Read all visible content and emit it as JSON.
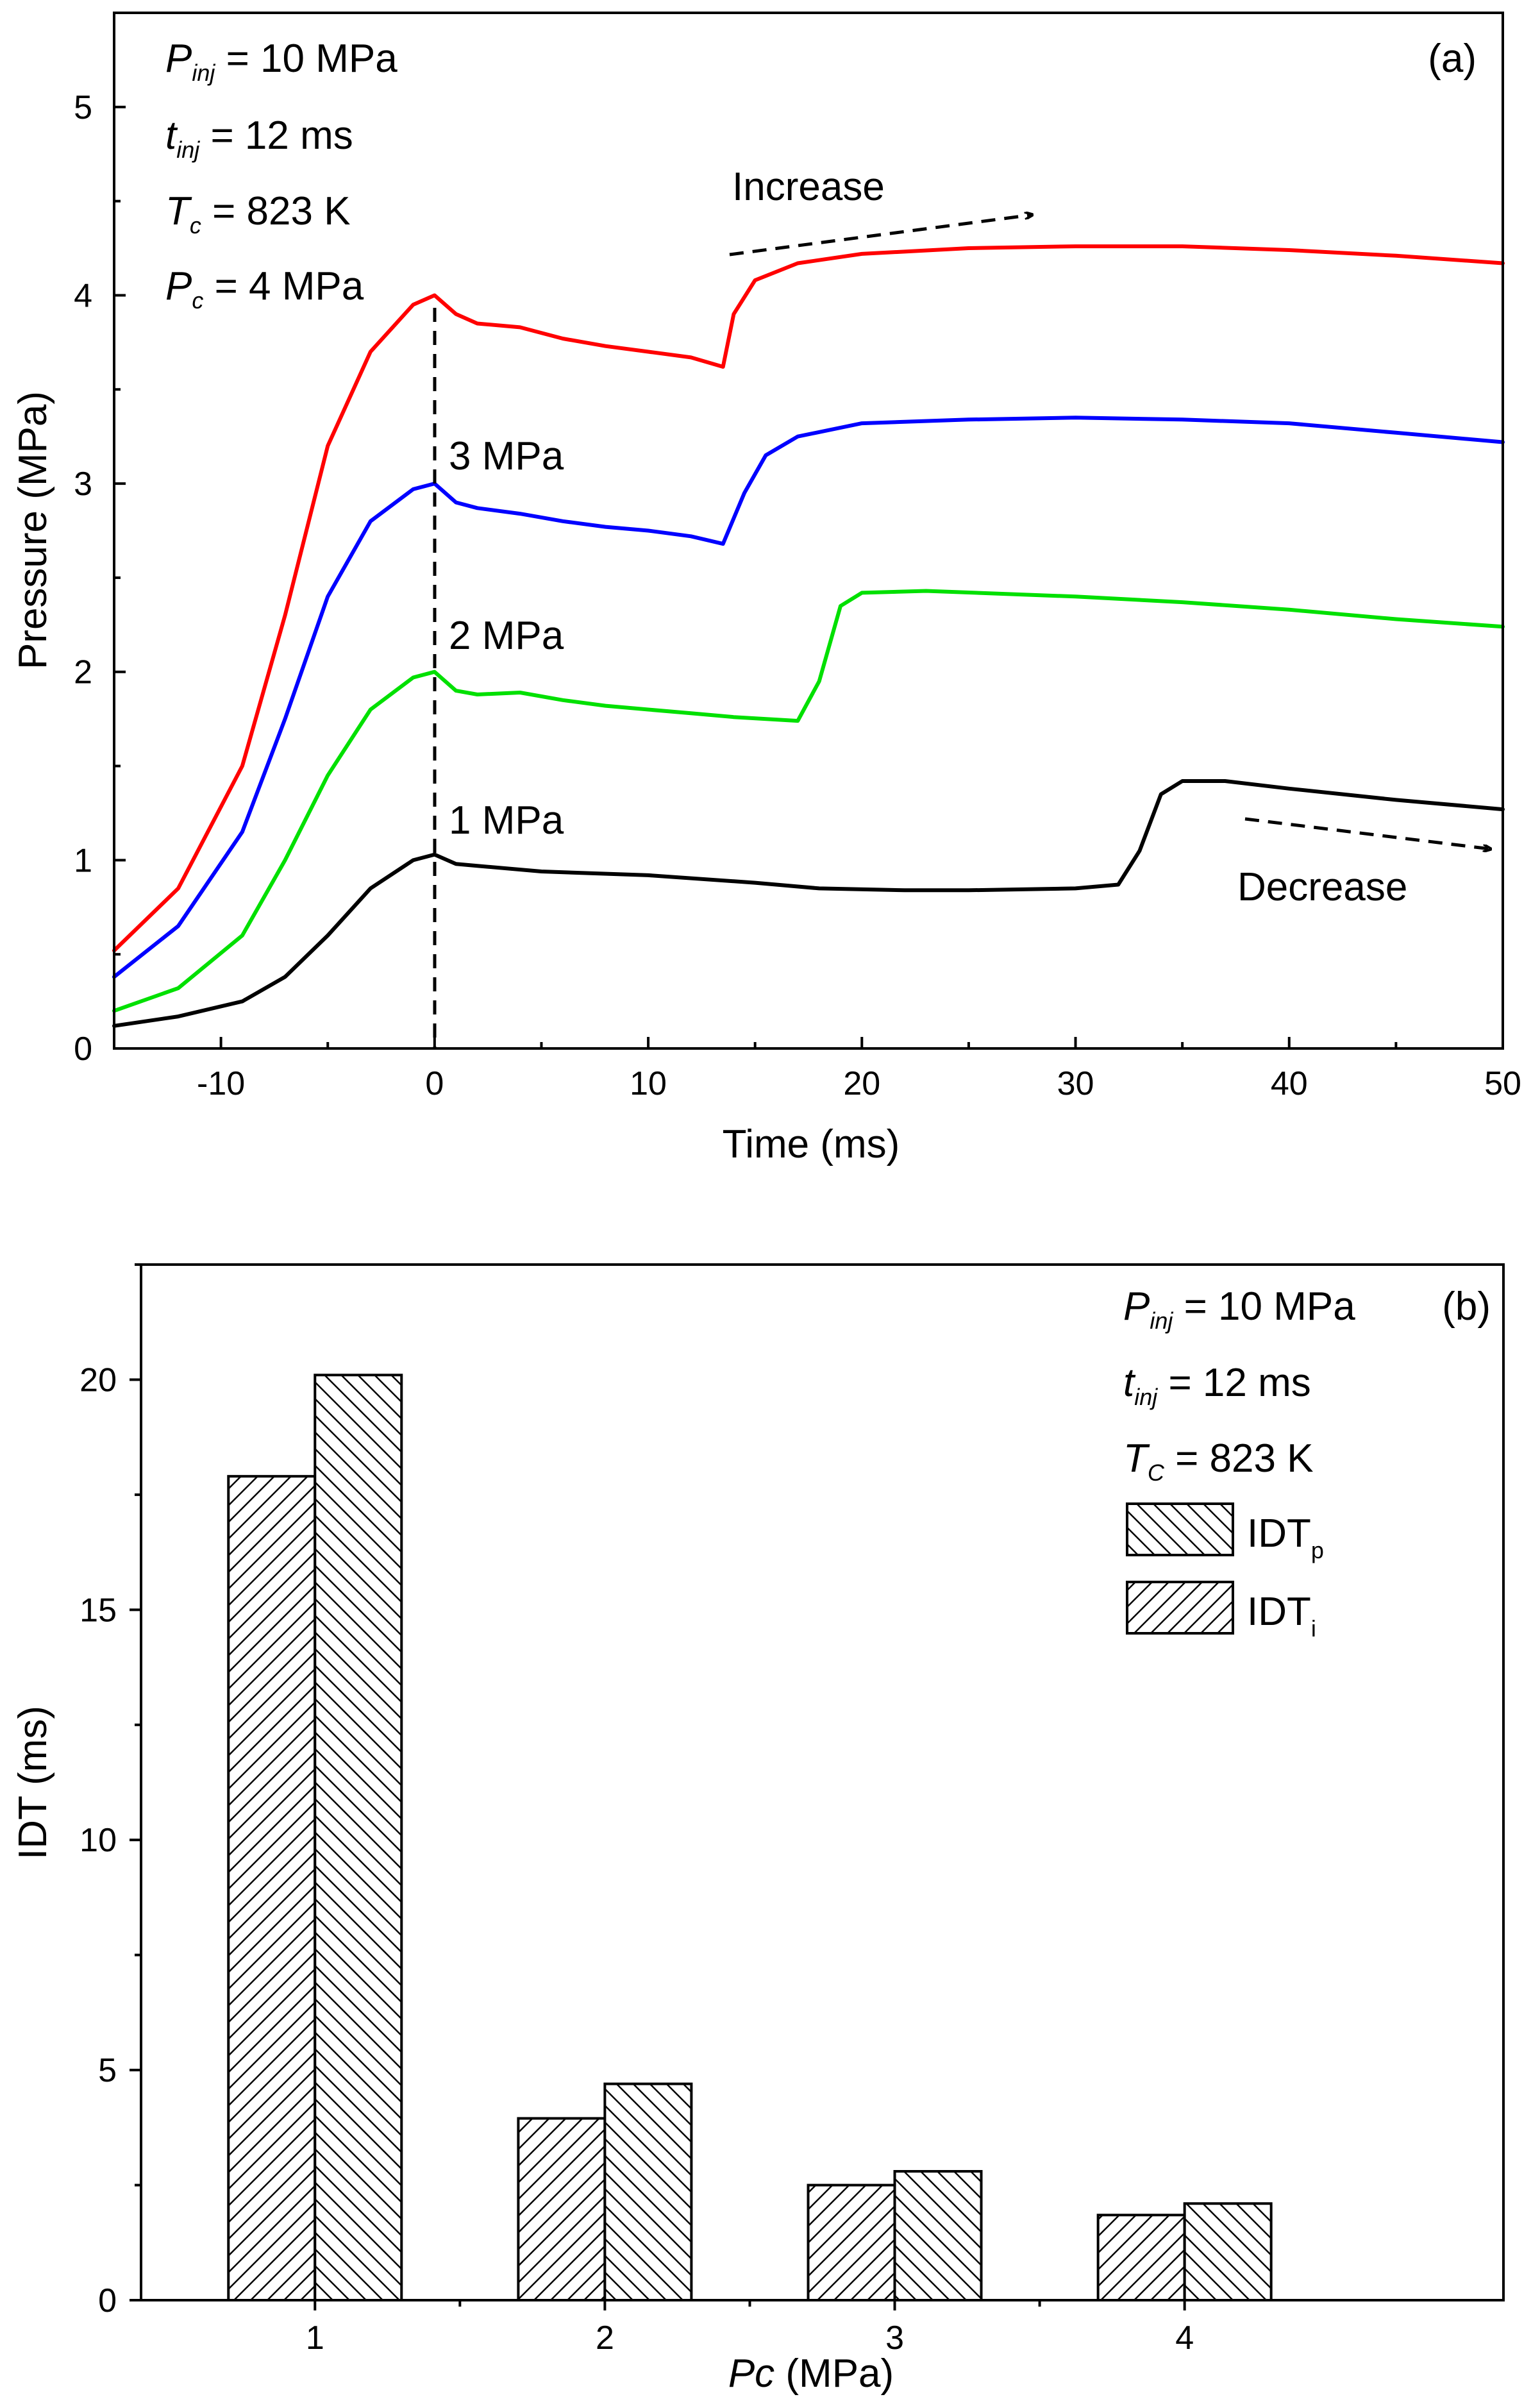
{
  "chart_data": [
    {
      "type": "line",
      "panel_label": "(a)",
      "xlabel": "Time (ms)",
      "ylabel": "Pressure (MPa)",
      "xlim": [
        -15,
        50
      ],
      "ylim": [
        0,
        5.5
      ],
      "xticks": [
        -10,
        0,
        10,
        20,
        30,
        40,
        50
      ],
      "yticks": [
        0,
        1,
        2,
        3,
        4,
        5
      ],
      "conditions": [
        {
          "sym": "P",
          "sub": "inj",
          "rest": " = 10 MPa"
        },
        {
          "sym": "t",
          "sub": "inj",
          "rest": " = 12 ms"
        },
        {
          "sym": "T",
          "sub": "c",
          "rest": " = 823 K"
        },
        {
          "sym": "P",
          "sub": "c",
          "rest": " = 4 MPa"
        }
      ],
      "annotations": {
        "increase": "Increase",
        "decrease": "Decrease",
        "label_3": "3 MPa",
        "label_2": "2 MPa",
        "label_1": "1 MPa"
      },
      "series": [
        {
          "name": "4 MPa",
          "color": "#ff0000",
          "points": [
            [
              -15,
              0.52
            ],
            [
              -12,
              0.85
            ],
            [
              -9,
              1.5
            ],
            [
              -7,
              2.3
            ],
            [
              -5,
              3.2
            ],
            [
              -3,
              3.7
            ],
            [
              -1,
              3.95
            ],
            [
              0,
              4.0
            ],
            [
              1,
              3.9
            ],
            [
              2,
              3.85
            ],
            [
              4,
              3.83
            ],
            [
              6,
              3.77
            ],
            [
              8,
              3.73
            ],
            [
              10,
              3.7
            ],
            [
              12,
              3.67
            ],
            [
              13.5,
              3.62
            ],
            [
              14,
              3.9
            ],
            [
              15,
              4.08
            ],
            [
              17,
              4.17
            ],
            [
              20,
              4.22
            ],
            [
              25,
              4.25
            ],
            [
              30,
              4.26
            ],
            [
              35,
              4.26
            ],
            [
              40,
              4.24
            ],
            [
              45,
              4.21
            ],
            [
              50,
              4.17
            ]
          ]
        },
        {
          "name": "3 MPa",
          "color": "#0000ff",
          "points": [
            [
              -15,
              0.38
            ],
            [
              -12,
              0.65
            ],
            [
              -9,
              1.15
            ],
            [
              -7,
              1.75
            ],
            [
              -5,
              2.4
            ],
            [
              -3,
              2.8
            ],
            [
              -1,
              2.97
            ],
            [
              0,
              3.0
            ],
            [
              1,
              2.9
            ],
            [
              2,
              2.87
            ],
            [
              4,
              2.84
            ],
            [
              6,
              2.8
            ],
            [
              8,
              2.77
            ],
            [
              10,
              2.75
            ],
            [
              12,
              2.72
            ],
            [
              13.5,
              2.68
            ],
            [
              14.5,
              2.95
            ],
            [
              15.5,
              3.15
            ],
            [
              17,
              3.25
            ],
            [
              20,
              3.32
            ],
            [
              25,
              3.34
            ],
            [
              30,
              3.35
            ],
            [
              35,
              3.34
            ],
            [
              40,
              3.32
            ],
            [
              45,
              3.27
            ],
            [
              50,
              3.22
            ]
          ]
        },
        {
          "name": "2 MPa",
          "color": "#00e000",
          "points": [
            [
              -15,
              0.2
            ],
            [
              -12,
              0.32
            ],
            [
              -9,
              0.6
            ],
            [
              -7,
              1.0
            ],
            [
              -5,
              1.45
            ],
            [
              -3,
              1.8
            ],
            [
              -1,
              1.97
            ],
            [
              0,
              2.0
            ],
            [
              1,
              1.9
            ],
            [
              2,
              1.88
            ],
            [
              4,
              1.89
            ],
            [
              6,
              1.85
            ],
            [
              8,
              1.82
            ],
            [
              10,
              1.8
            ],
            [
              12,
              1.78
            ],
            [
              14,
              1.76
            ],
            [
              17,
              1.74
            ],
            [
              18,
              1.95
            ],
            [
              19,
              2.35
            ],
            [
              20,
              2.42
            ],
            [
              23,
              2.43
            ],
            [
              30,
              2.4
            ],
            [
              35,
              2.37
            ],
            [
              40,
              2.33
            ],
            [
              45,
              2.28
            ],
            [
              50,
              2.24
            ]
          ]
        },
        {
          "name": "1 MPa",
          "color": "#000000",
          "points": [
            [
              -15,
              0.12
            ],
            [
              -12,
              0.17
            ],
            [
              -9,
              0.25
            ],
            [
              -7,
              0.38
            ],
            [
              -5,
              0.6
            ],
            [
              -3,
              0.85
            ],
            [
              -1,
              1.0
            ],
            [
              0,
              1.03
            ],
            [
              1,
              0.98
            ],
            [
              2,
              0.97
            ],
            [
              5,
              0.94
            ],
            [
              10,
              0.92
            ],
            [
              15,
              0.88
            ],
            [
              18,
              0.85
            ],
            [
              22,
              0.84
            ],
            [
              25,
              0.84
            ],
            [
              30,
              0.85
            ],
            [
              32,
              0.87
            ],
            [
              33,
              1.05
            ],
            [
              34,
              1.35
            ],
            [
              35,
              1.42
            ],
            [
              37,
              1.42
            ],
            [
              40,
              1.38
            ],
            [
              45,
              1.32
            ],
            [
              50,
              1.27
            ]
          ]
        }
      ]
    },
    {
      "type": "bar",
      "panel_label": "(b)",
      "xlabel_italic": "Pc",
      "xlabel_rest": " (MPa)",
      "ylabel": "IDT (ms)",
      "ylim": [
        0,
        22.5
      ],
      "yticks": [
        0,
        5,
        10,
        15,
        20
      ],
      "categories": [
        "1",
        "2",
        "3",
        "4"
      ],
      "conditions": [
        {
          "sym": "P",
          "sub": "inj",
          "rest": " = 10 MPa"
        },
        {
          "sym": "t",
          "sub": "inj",
          "rest": " = 12 ms"
        },
        {
          "sym": "T",
          "sub": "C",
          "rest": " = 823 K"
        }
      ],
      "legend": [
        {
          "main": "IDT",
          "sub": "p"
        },
        {
          "main": "IDT",
          "sub": "i"
        }
      ],
      "series": [
        {
          "name": "IDTi",
          "values": [
            17.9,
            3.95,
            2.5,
            1.85
          ]
        },
        {
          "name": "IDTp",
          "values": [
            20.1,
            4.7,
            2.8,
            2.1
          ]
        }
      ]
    }
  ]
}
